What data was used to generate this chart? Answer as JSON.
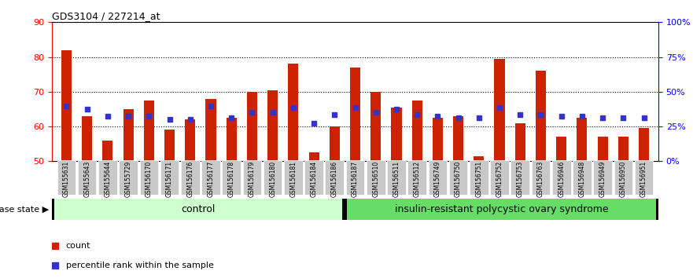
{
  "title": "GDS3104 / 227214_at",
  "samples": [
    "GSM155631",
    "GSM155643",
    "GSM155644",
    "GSM155729",
    "GSM156170",
    "GSM156171",
    "GSM156176",
    "GSM156177",
    "GSM156178",
    "GSM156179",
    "GSM156180",
    "GSM156181",
    "GSM156184",
    "GSM156186",
    "GSM156187",
    "GSM156510",
    "GSM156511",
    "GSM156512",
    "GSM156749",
    "GSM156750",
    "GSM156751",
    "GSM156752",
    "GSM156753",
    "GSM156763",
    "GSM156946",
    "GSM156948",
    "GSM156949",
    "GSM156950",
    "GSM156951"
  ],
  "red_values": [
    82,
    63,
    56,
    65,
    67.5,
    59,
    62,
    68,
    62.5,
    70,
    70.5,
    78,
    52.5,
    60,
    77,
    70,
    65.5,
    67.5,
    62.5,
    63,
    51.5,
    79.5,
    61,
    76,
    57,
    62.5,
    57,
    57,
    59.5
  ],
  "blue_values": [
    66,
    65,
    63,
    63,
    63,
    62,
    62,
    66,
    62.5,
    64,
    64,
    65.5,
    61,
    63.5,
    65.5,
    64,
    65,
    63.5,
    63,
    62.5,
    62.5,
    65.5,
    63.5,
    63.5,
    63,
    63,
    62.5,
    62.5,
    62.5
  ],
  "control_count": 14,
  "disease_count": 15,
  "group_control_label": "control",
  "group_disease_label": "insulin-resistant polycystic ovary syndrome",
  "disease_state_label": "disease state",
  "legend_red": "count",
  "legend_blue": "percentile rank within the sample",
  "ymin": 50,
  "ymax": 90,
  "yticks_left": [
    50,
    60,
    70,
    80,
    90
  ],
  "yticks_right_labels": [
    "0%",
    "25%",
    "50%",
    "75%",
    "100%"
  ],
  "control_bg": "#ccffcc",
  "disease_bg": "#66dd66",
  "bar_color": "#cc2200",
  "dot_color": "#3333cc",
  "bar_width": 0.5,
  "xtick_bg": "#c8c8c8"
}
